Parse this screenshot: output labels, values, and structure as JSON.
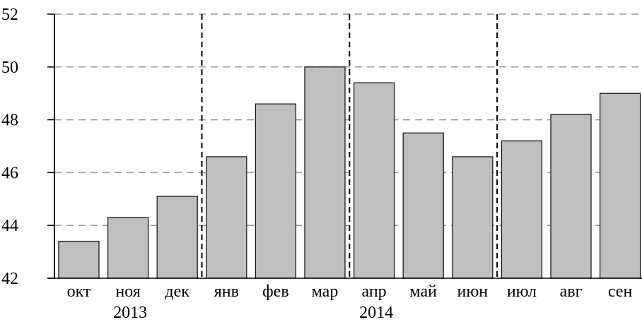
{
  "chart_data": {
    "type": "bar",
    "categories": [
      "окт",
      "ноя",
      "дек",
      "янв",
      "фев",
      "мар",
      "апр",
      "май",
      "июн",
      "июл",
      "авг",
      "сен"
    ],
    "values": [
      43.4,
      44.3,
      45.1,
      46.6,
      48.6,
      50.0,
      49.4,
      47.5,
      46.6,
      47.2,
      48.2,
      49.0
    ],
    "year_labels": [
      {
        "label": "2013",
        "center_category": "ноя"
      },
      {
        "label": "2014",
        "center_category": "апр"
      }
    ],
    "separators_before": [
      "янв",
      "апр",
      "июл"
    ],
    "title": "",
    "xlabel": "",
    "ylabel": "",
    "ylim": [
      42,
      52
    ],
    "yticks": [
      42,
      44,
      46,
      48,
      50,
      52
    ],
    "grid": "horizontal-dashed",
    "legend": "none",
    "colors": {
      "bar_fill": "#bfbfbf",
      "bar_stroke": "#1a1a1a",
      "grid": "#999999",
      "separator": "#000000",
      "axis": "#000000"
    }
  }
}
